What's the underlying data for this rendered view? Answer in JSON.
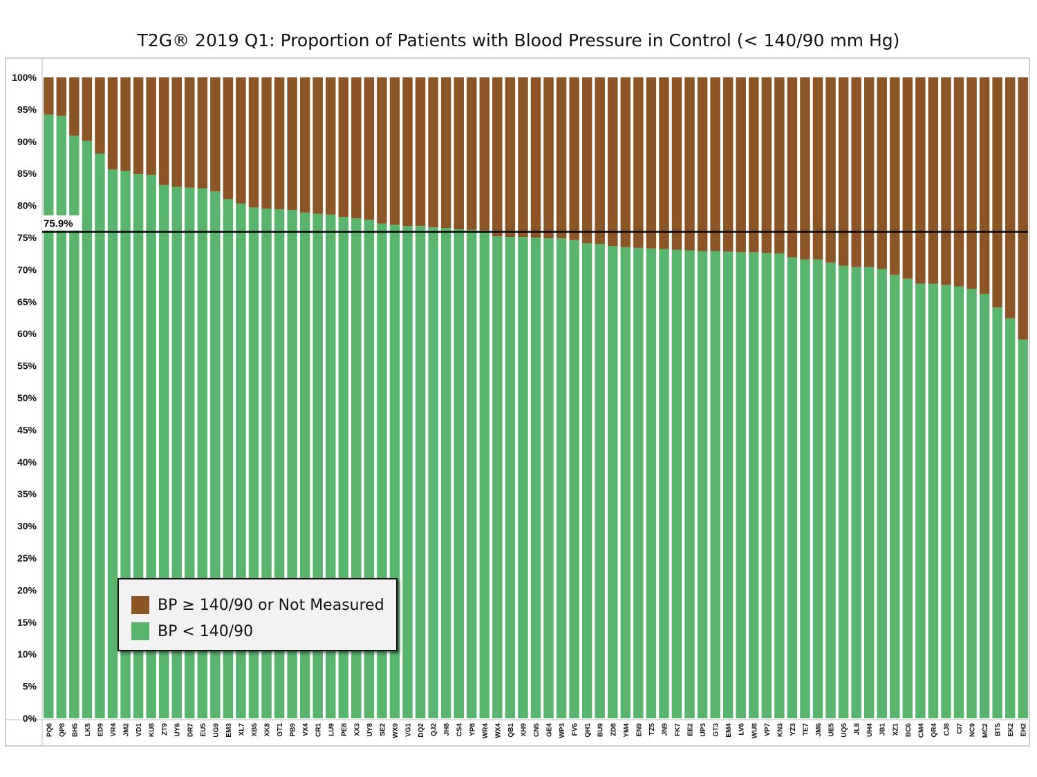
{
  "title": "T2G® 2019 Q1: Proportion of Patients with Blood Pressure in Control (< 140/90 mm Hg)",
  "chart_data": {
    "type": "bar",
    "stacked": true,
    "title": "T2G® 2019 Q1: Proportion of Patients with Blood Pressure in Control (< 140/90 mm Hg)",
    "xlabel": "",
    "ylabel": "",
    "ylim": [
      0,
      100
    ],
    "yticks": [
      "0%",
      "5%",
      "10%",
      "15%",
      "20%",
      "25%",
      "30%",
      "35%",
      "40%",
      "45%",
      "50%",
      "55%",
      "60%",
      "65%",
      "70%",
      "75%",
      "80%",
      "85%",
      "90%",
      "95%",
      "100%"
    ],
    "grid": false,
    "legend_position": "bottom-left",
    "categories": [
      "PQ6",
      "QP8",
      "BH5",
      "LK5",
      "ED9",
      "VR4",
      "JM2",
      "VD1",
      "KU8",
      "ZT9",
      "UY6",
      "DR7",
      "EU5",
      "UG9",
      "EM3",
      "XL7",
      "XB5",
      "XK8",
      "GT1",
      "PB9",
      "VX4",
      "CR1",
      "LU9",
      "PE8",
      "XX3",
      "UY8",
      "SE2",
      "WX9",
      "VG1",
      "DQ2",
      "QJ2",
      "JH8",
      "CS4",
      "YP8",
      "WR4",
      "WX4",
      "QB1",
      "XH9",
      "CN5",
      "GE4",
      "WP3",
      "FV6",
      "QH1",
      "BU9",
      "ZD8",
      "YM4",
      "EN9",
      "TZ5",
      "JN9",
      "FK7",
      "EE2",
      "UP3",
      "GT3",
      "EM4",
      "LV6",
      "WU8",
      "VP7",
      "KN3",
      "YZ3",
      "TE7",
      "JM6",
      "UE5",
      "UQ5",
      "JL8",
      "UH4",
      "JB1",
      "XZ1",
      "BC6",
      "CM4",
      "QR4",
      "CJ8",
      "CI7",
      "NC9",
      "MC2",
      "BT5",
      "EK2",
      "EH2"
    ],
    "series": [
      {
        "name": "BP < 140/90",
        "color": "#59b56e",
        "values": [
          94.2,
          94.0,
          90.9,
          90.1,
          88.1,
          85.6,
          85.4,
          84.9,
          84.8,
          83.2,
          82.9,
          82.8,
          82.7,
          82.2,
          81.0,
          80.3,
          79.7,
          79.5,
          79.4,
          79.3,
          78.9,
          78.7,
          78.6,
          78.2,
          78.0,
          77.8,
          77.2,
          77.0,
          76.8,
          76.8,
          76.6,
          76.5,
          76.3,
          76.2,
          76.1,
          75.2,
          75.1,
          75.1,
          75.0,
          74.9,
          74.9,
          74.6,
          74.1,
          74.0,
          73.7,
          73.5,
          73.4,
          73.3,
          73.2,
          73.1,
          73.0,
          72.9,
          72.9,
          72.8,
          72.7,
          72.7,
          72.6,
          72.5,
          71.9,
          71.6,
          71.6,
          71.1,
          70.6,
          70.4,
          70.4,
          70.1,
          69.2,
          68.6,
          67.8,
          67.8,
          67.6,
          67.4,
          67.0,
          66.2,
          64.1,
          62.4,
          59.1
        ]
      },
      {
        "name": "BP ≥ 140/90 or Not Measured",
        "color": "#8b5526",
        "values": [
          5.8,
          6.0,
          9.1,
          9.9,
          11.9,
          14.4,
          14.6,
          15.1,
          15.2,
          16.8,
          17.1,
          17.2,
          17.3,
          17.8,
          19.0,
          19.7,
          20.3,
          20.5,
          20.6,
          20.7,
          21.1,
          21.3,
          21.4,
          21.8,
          22.0,
          22.2,
          22.8,
          23.0,
          23.2,
          23.2,
          23.4,
          23.5,
          23.7,
          23.8,
          23.9,
          24.8,
          24.9,
          24.9,
          25.0,
          25.1,
          25.1,
          25.4,
          25.9,
          26.0,
          26.3,
          26.5,
          26.6,
          26.7,
          26.8,
          26.9,
          27.0,
          27.1,
          27.1,
          27.2,
          27.3,
          27.3,
          27.4,
          27.5,
          28.1,
          28.4,
          28.4,
          28.9,
          29.4,
          29.6,
          29.6,
          29.9,
          30.8,
          31.4,
          32.2,
          32.2,
          32.4,
          32.6,
          33.0,
          33.8,
          35.9,
          37.6,
          40.9
        ]
      }
    ],
    "reference_line": {
      "value": 75.9,
      "label": "75.9%"
    }
  },
  "legend": {
    "items": [
      {
        "label": "BP ≥ 140/90 or Not Measured",
        "color": "#8b5526"
      },
      {
        "label": "BP < 140/90",
        "color": "#59b56e"
      }
    ]
  }
}
